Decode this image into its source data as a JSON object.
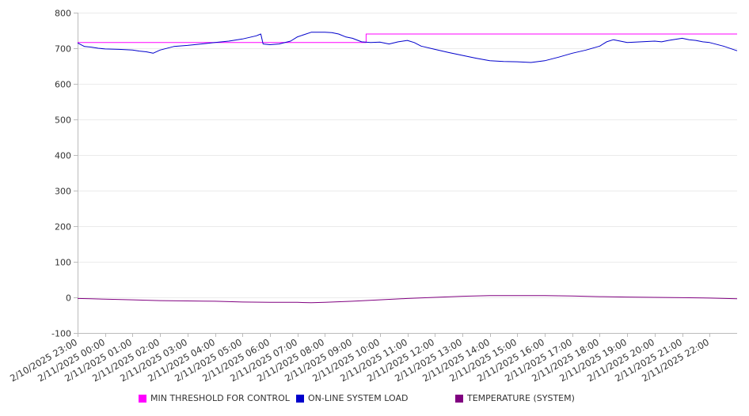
{
  "chart_data": {
    "type": "line",
    "title": "",
    "xlabel": "",
    "ylabel": "",
    "ylim": [
      -100,
      800
    ],
    "y_ticks": [
      "800",
      "700",
      "600",
      "500",
      "400",
      "300",
      "200",
      "100",
      "0",
      "-100"
    ],
    "y_tick_values": [
      800,
      700,
      600,
      500,
      400,
      300,
      200,
      100,
      0,
      -100
    ],
    "grid": "horizontal",
    "legend_position": "bottom",
    "x_ticks": [
      "2/10/2025 23:00",
      "2/11/2025 00:00",
      "2/11/2025 01:00",
      "2/11/2025 02:00",
      "2/11/2025 03:00",
      "2/11/2025 04:00",
      "2/11/2025 05:00",
      "2/11/2025 06:00",
      "2/11/2025 07:00",
      "2/11/2025 08:00",
      "2/11/2025 09:00",
      "2/11/2025 10:00",
      "2/11/2025 11:00",
      "2/11/2025 12:00",
      "2/11/2025 13:00",
      "2/11/2025 14:00",
      "2/11/2025 15:00",
      "2/11/2025 16:00",
      "2/11/2025 17:00",
      "2/11/2025 18:00",
      "2/11/2025 19:00",
      "2/11/2025 20:00",
      "2/11/2025 21:00",
      "2/11/2025 22:00"
    ],
    "x_start": "2/10/2025 23:00",
    "x_end": "2/11/2025 23:00",
    "series": [
      {
        "name": "MIN THRESHOLD FOR CONTROL",
        "color": "#ff00ff",
        "x": [
          "2/10/2025 23:00",
          "2/11/2025 09:30",
          "2/11/2025 09:30",
          "2/11/2025 23:00"
        ],
        "y": [
          716,
          716,
          740,
          740
        ]
      },
      {
        "name": "ON-LINE SYSTEM LOAD",
        "color": "#0000cc",
        "x": [
          "2/10/2025 23:00",
          "2/10/2025 23:15",
          "2/10/2025 23:30",
          "2/10/2025 23:45",
          "2/11/2025 00:00",
          "2/11/2025 00:30",
          "2/11/2025 01:00",
          "2/11/2025 01:15",
          "2/11/2025 01:30",
          "2/11/2025 01:45",
          "2/11/2025 02:00",
          "2/11/2025 02:30",
          "2/11/2025 03:00",
          "2/11/2025 03:30",
          "2/11/2025 04:00",
          "2/11/2025 04:30",
          "2/11/2025 05:00",
          "2/11/2025 05:30",
          "2/11/2025 05:40",
          "2/11/2025 05:45",
          "2/11/2025 06:00",
          "2/11/2025 06:20",
          "2/11/2025 06:45",
          "2/11/2025 07:00",
          "2/11/2025 07:30",
          "2/11/2025 08:00",
          "2/11/2025 08:15",
          "2/11/2025 08:30",
          "2/11/2025 08:45",
          "2/11/2025 09:00",
          "2/11/2025 09:20",
          "2/11/2025 09:40",
          "2/11/2025 10:00",
          "2/11/2025 10:20",
          "2/11/2025 10:40",
          "2/11/2025 11:00",
          "2/11/2025 11:15",
          "2/11/2025 11:30",
          "2/11/2025 12:00",
          "2/11/2025 12:30",
          "2/11/2025 13:00",
          "2/11/2025 13:30",
          "2/11/2025 14:00",
          "2/11/2025 14:30",
          "2/11/2025 15:00",
          "2/11/2025 15:30",
          "2/11/2025 16:00",
          "2/11/2025 16:30",
          "2/11/2025 17:00",
          "2/11/2025 17:30",
          "2/11/2025 18:00",
          "2/11/2025 18:15",
          "2/11/2025 18:30",
          "2/11/2025 19:00",
          "2/11/2025 19:30",
          "2/11/2025 20:00",
          "2/11/2025 20:15",
          "2/11/2025 20:30",
          "2/11/2025 20:45",
          "2/11/2025 21:00",
          "2/11/2025 21:15",
          "2/11/2025 21:30",
          "2/11/2025 21:45",
          "2/11/2025 22:00",
          "2/11/2025 22:30",
          "2/11/2025 23:00"
        ],
        "y": [
          715,
          705,
          703,
          700,
          698,
          697,
          695,
          692,
          690,
          686,
          695,
          705,
          708,
          712,
          716,
          720,
          726,
          735,
          740,
          712,
          710,
          712,
          720,
          732,
          745,
          745,
          744,
          740,
          732,
          728,
          718,
          716,
          717,
          712,
          718,
          722,
          716,
          706,
          697,
          688,
          680,
          672,
          665,
          663,
          662,
          660,
          665,
          675,
          686,
          695,
          706,
          718,
          724,
          716,
          718,
          720,
          718,
          722,
          725,
          728,
          724,
          722,
          718,
          716,
          706,
          693
        ]
      },
      {
        "name": "TEMPERATURE (SYSTEM)",
        "color": "#800080",
        "x": [
          "2/10/2025 23:00",
          "2/10/2025 23:30",
          "2/11/2025 00:00",
          "2/11/2025 01:00",
          "2/11/2025 02:00",
          "2/11/2025 03:00",
          "2/11/2025 04:00",
          "2/11/2025 05:00",
          "2/11/2025 06:00",
          "2/11/2025 07:00",
          "2/11/2025 07:30",
          "2/11/2025 08:00",
          "2/11/2025 09:00",
          "2/11/2025 10:00",
          "2/11/2025 11:00",
          "2/11/2025 12:00",
          "2/11/2025 13:00",
          "2/11/2025 14:00",
          "2/11/2025 15:00",
          "2/11/2025 16:00",
          "2/11/2025 17:00",
          "2/11/2025 18:00",
          "2/11/2025 19:00",
          "2/11/2025 20:00",
          "2/11/2025 21:00",
          "2/11/2025 22:00",
          "2/11/2025 23:00"
        ],
        "y": [
          -3,
          -4,
          -5,
          -7,
          -9,
          -10,
          -11,
          -13,
          -14,
          -14,
          -15,
          -14,
          -11,
          -7,
          -3,
          0,
          3,
          5,
          5,
          5,
          4,
          2,
          1,
          0,
          -1,
          -2,
          -4
        ]
      }
    ]
  }
}
